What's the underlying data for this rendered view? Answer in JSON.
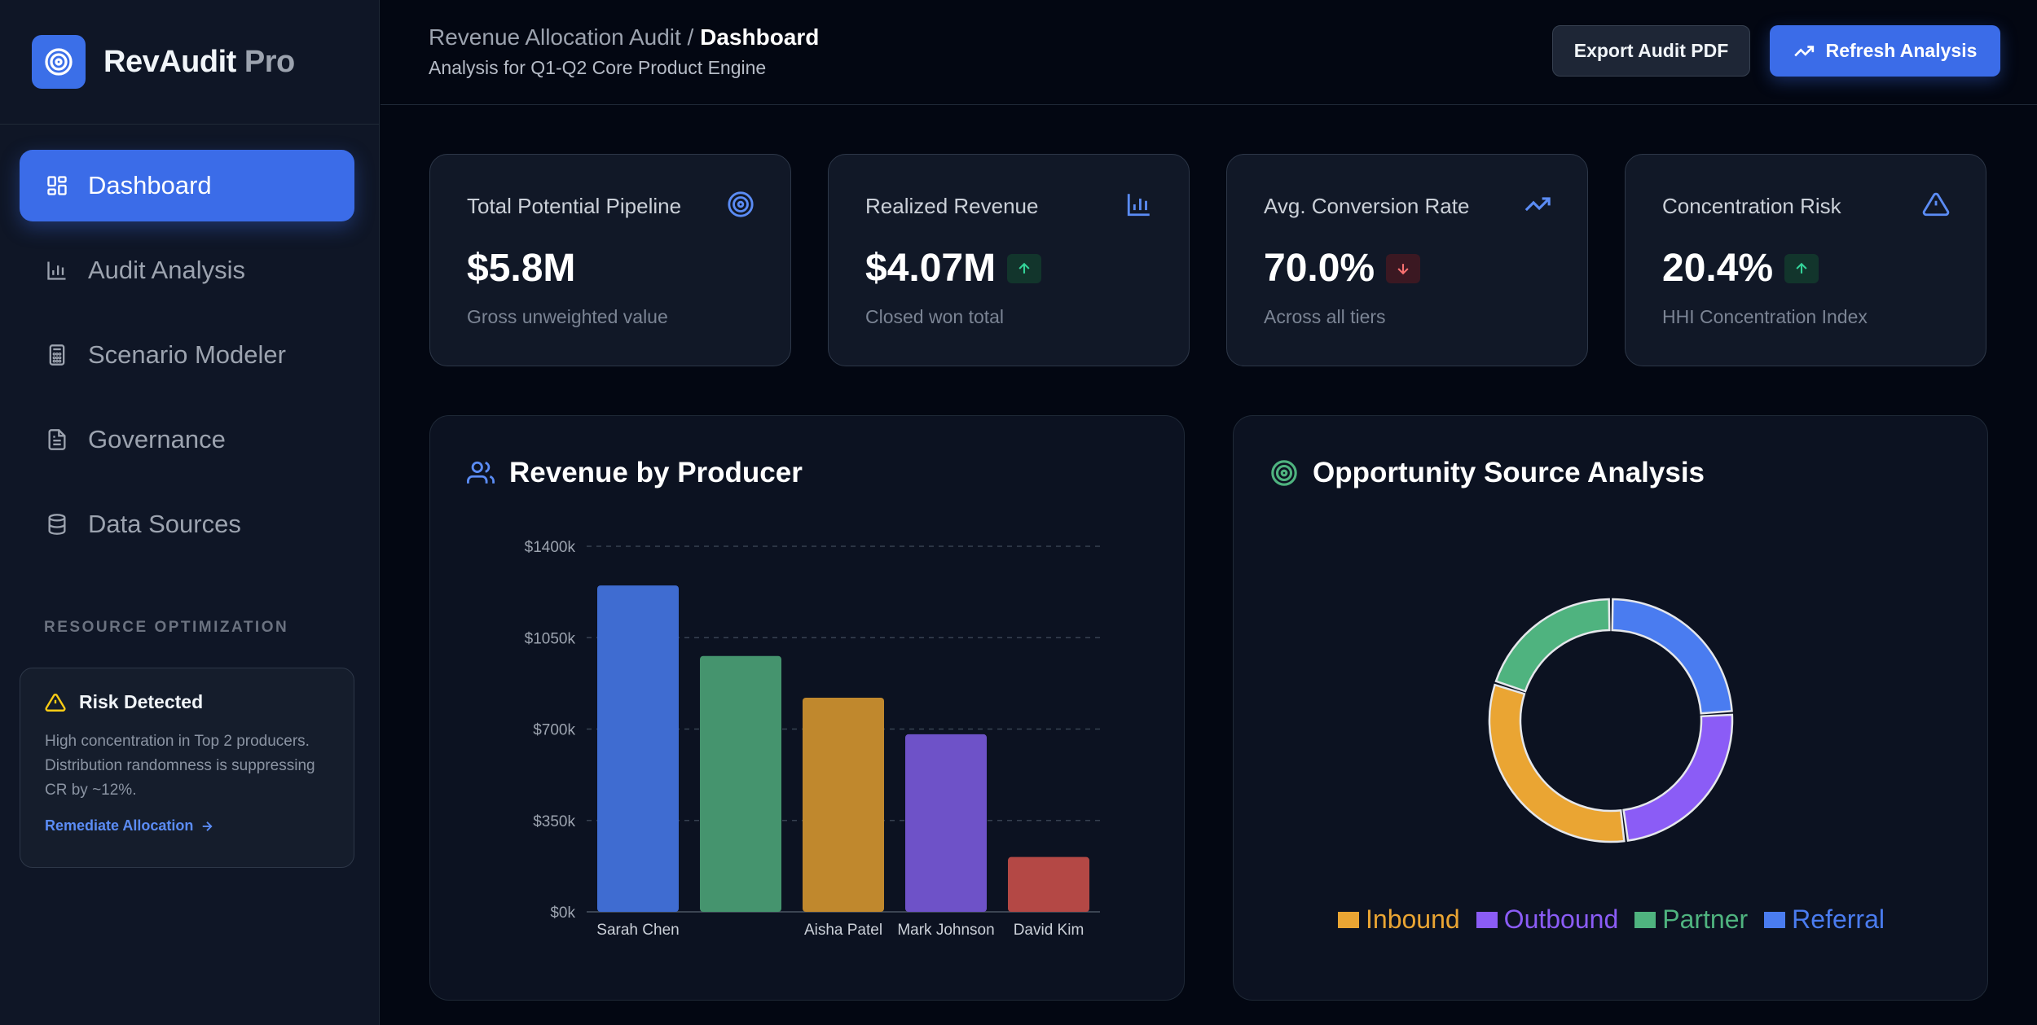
{
  "brand": {
    "name": "RevAudit",
    "suffix": "Pro"
  },
  "nav": [
    {
      "label": "Dashboard",
      "icon": "dashboard-icon",
      "active": true
    },
    {
      "label": "Audit Analysis",
      "icon": "bar-chart-icon"
    },
    {
      "label": "Scenario Modeler",
      "icon": "calculator-icon"
    },
    {
      "label": "Governance",
      "icon": "document-icon"
    },
    {
      "label": "Data Sources",
      "icon": "database-icon"
    }
  ],
  "sidebar_section": "RESOURCE OPTIMIZATION",
  "risk": {
    "title": "Risk Detected",
    "body": "High concentration in Top 2 producers. Distribution randomness is suppressing CR by ~12%.",
    "link": "Remediate Allocation"
  },
  "header": {
    "crumb_parent": "Revenue Allocation Audit",
    "crumb_sep": " / ",
    "crumb_current": "Dashboard",
    "subtitle": "Analysis for Q1-Q2 Core Product Engine",
    "export_label": "Export Audit PDF",
    "refresh_label": "Refresh Analysis"
  },
  "kpis": [
    {
      "title": "Total Potential Pipeline",
      "value": "$5.8M",
      "sub": "Gross unweighted value",
      "icon": "target-icon",
      "trend": ""
    },
    {
      "title": "Realized Revenue",
      "value": "$4.07M",
      "sub": "Closed won total",
      "icon": "bar-chart-icon",
      "trend": "up"
    },
    {
      "title": "Avg. Conversion Rate",
      "value": "70.0%",
      "sub": "Across all tiers",
      "icon": "trending-up-icon",
      "trend": "down"
    },
    {
      "title": "Concentration Risk",
      "value": "20.4%",
      "sub": "HHI Concentration Index",
      "icon": "warning-icon",
      "trend": "up"
    }
  ],
  "panels": {
    "producer_title": "Revenue by Producer",
    "source_title": "Opportunity Source Analysis"
  },
  "chart_data": [
    {
      "type": "bar",
      "title": "Revenue by Producer",
      "categories": [
        "Sarah Chen",
        "",
        "Aisha Patel",
        "Mark Johnson",
        "David Kim"
      ],
      "values": [
        1250,
        980,
        820,
        680,
        210
      ],
      "colors": [
        "#3f6cd1",
        "#45946e",
        "#c0882d",
        "#6e52c8",
        "#b44845"
      ],
      "yticks": [
        "$0k",
        "$350k",
        "$700k",
        "$1050k",
        "$1400k"
      ],
      "ylim": [
        0,
        1400
      ],
      "grid": true
    },
    {
      "type": "pie",
      "title": "Opportunity Source Analysis",
      "series": [
        {
          "name": "Referral",
          "value": 24,
          "color": "#4a7cf0"
        },
        {
          "name": "Outbound",
          "value": 24,
          "color": "#8b5cf6"
        },
        {
          "name": "Inbound",
          "value": 32,
          "color": "#eaa533"
        },
        {
          "name": "Partner",
          "value": 20,
          "color": "#4fb37f"
        }
      ],
      "legend_order": [
        "Inbound",
        "Outbound",
        "Partner",
        "Referral"
      ],
      "legend_position": "bottom"
    }
  ]
}
